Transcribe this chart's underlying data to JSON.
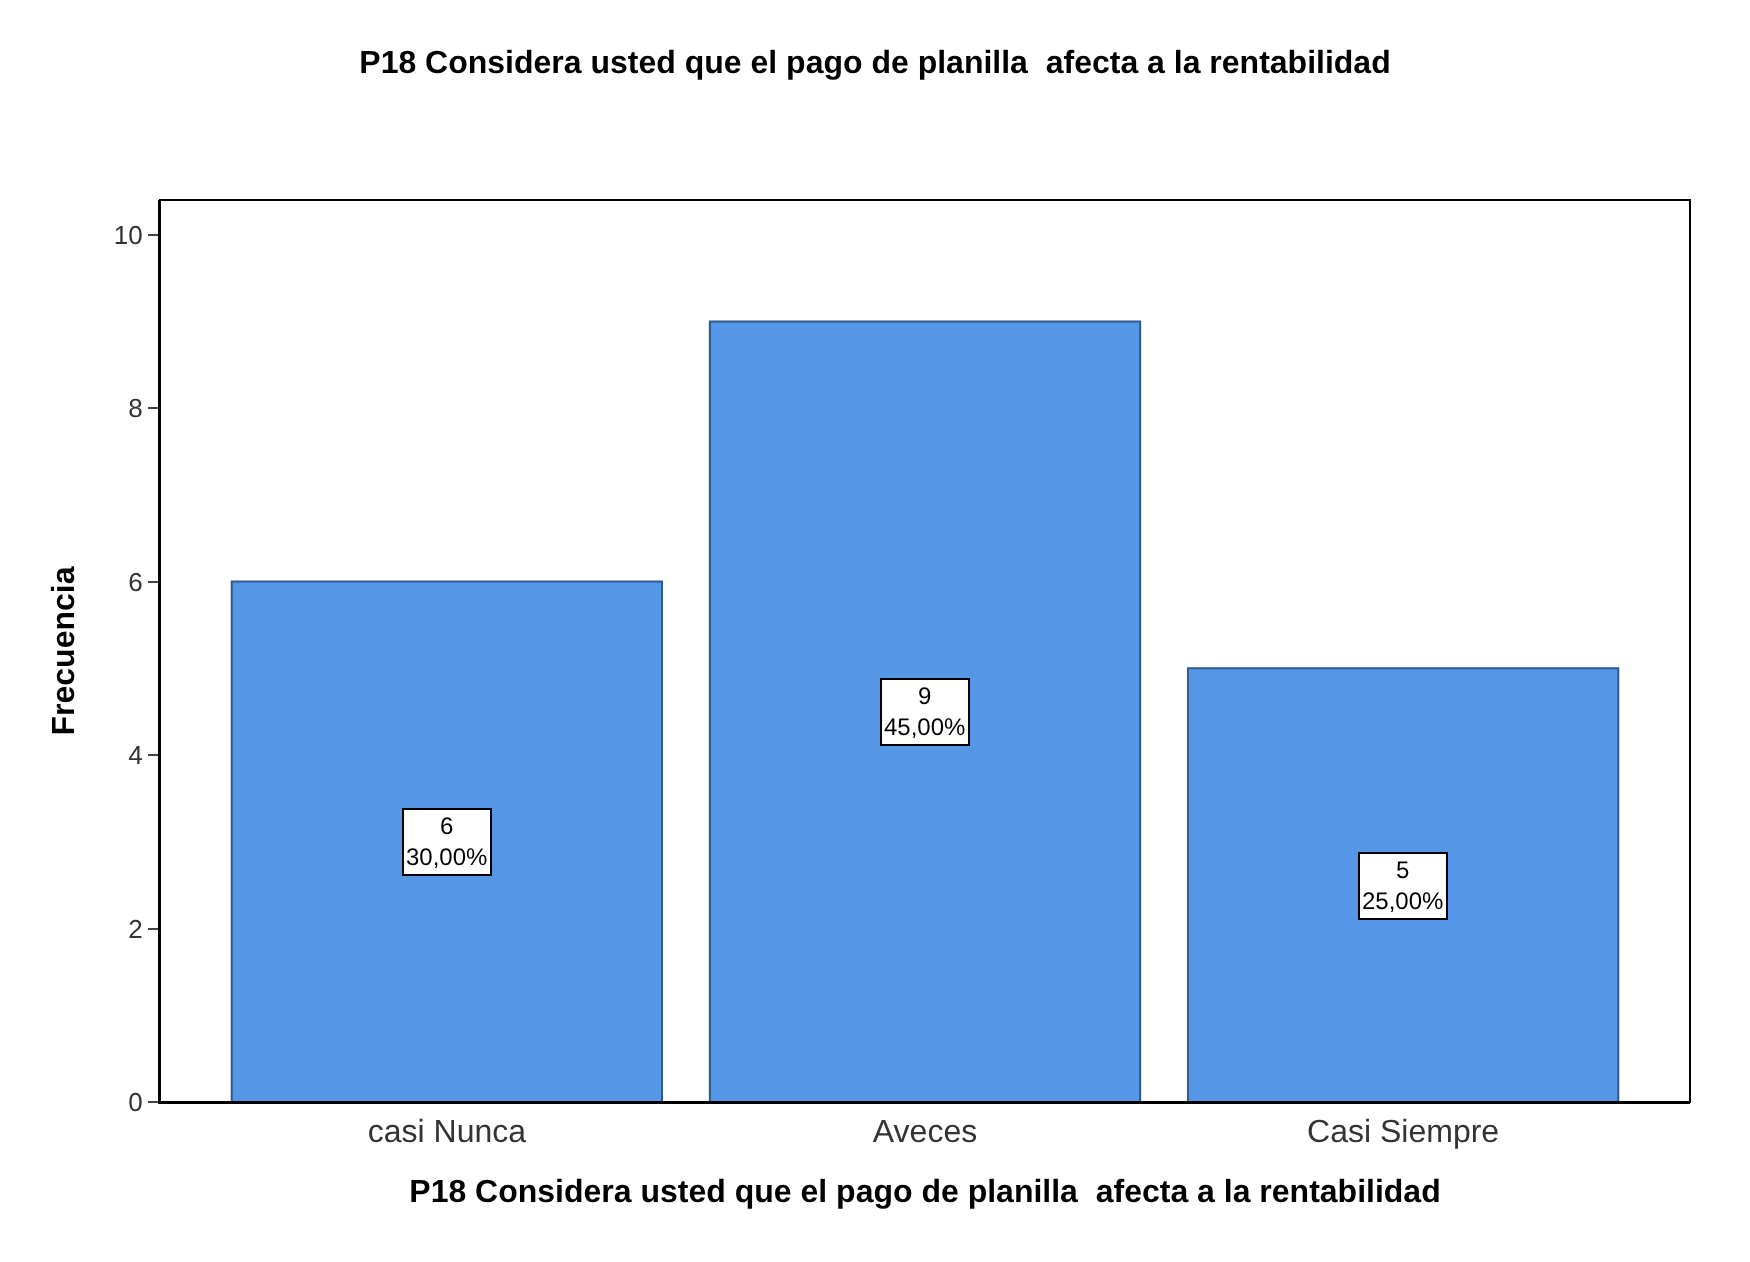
{
  "chart_data": {
    "type": "bar",
    "title": "P18 Considera usted que el pago de planilla  afecta a la rentabilidad",
    "xlabel": "P18 Considera usted que el pago de planilla  afecta a la rentabilidad",
    "ylabel": "Frecuencia",
    "categories": [
      "casi Nunca",
      "Aveces",
      "Casi Siempre"
    ],
    "values": [
      6,
      9,
      5
    ],
    "value_labels": [
      "6\n30,00%",
      "9\n45,00%",
      "5\n25,00%"
    ],
    "color": "#5596e6",
    "ylim": [
      0,
      10.4
    ],
    "yticks": [
      0,
      2,
      4,
      6,
      8,
      10
    ],
    "grid": false
  }
}
